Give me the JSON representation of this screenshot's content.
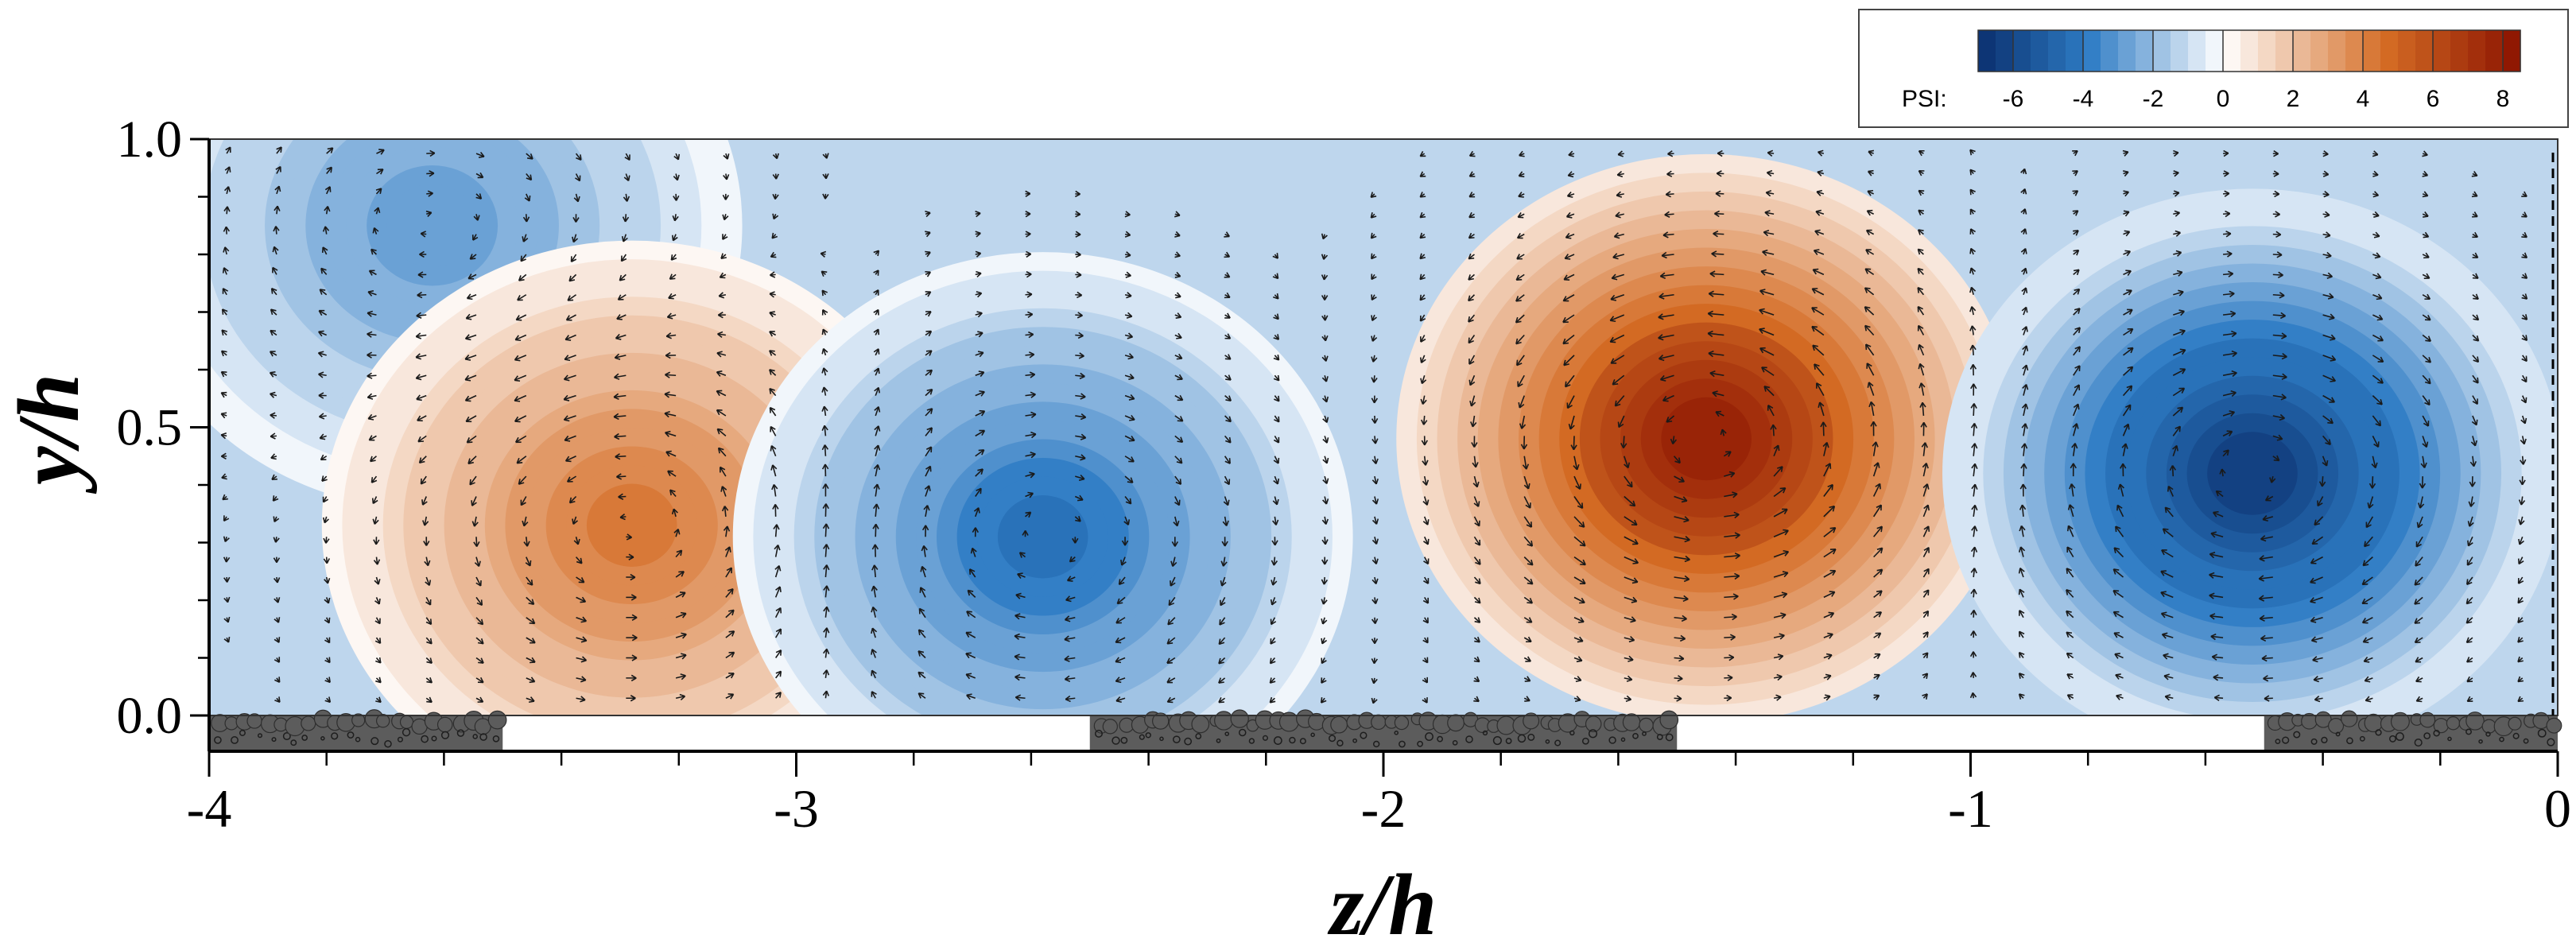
{
  "chart_data": {
    "type": "heatmap",
    "title": "",
    "xlabel": "z/h",
    "ylabel": "y/h",
    "xlim": [
      -4,
      0
    ],
    "ylim": [
      0.0,
      1.0
    ],
    "x_ticks": [
      {
        "value": -4,
        "label": "-4"
      },
      {
        "value": -3,
        "label": "-3"
      },
      {
        "value": -2,
        "label": "-2"
      },
      {
        "value": -1,
        "label": "-1"
      },
      {
        "value": 0,
        "label": "0"
      }
    ],
    "y_ticks": [
      {
        "value": 0.0,
        "label": "0.0"
      },
      {
        "value": 0.5,
        "label": "0.5"
      },
      {
        "value": 1.0,
        "label": "1.0"
      }
    ],
    "colorbar": {
      "label": "PSI:",
      "min": -7,
      "max": 8.5,
      "ticks": [
        {
          "value": -6,
          "label": "-6"
        },
        {
          "value": -4,
          "label": "-4"
        },
        {
          "value": -2,
          "label": "-2"
        },
        {
          "value": 0,
          "label": "0"
        },
        {
          "value": 2,
          "label": "2"
        },
        {
          "value": 4,
          "label": "4"
        },
        {
          "value": 6,
          "label": "6"
        },
        {
          "value": 8,
          "label": "8"
        }
      ],
      "negative_color": "#0a2f6e",
      "zero_color": "#ffffff",
      "positive_color": "#8b1200"
    },
    "vortices": [
      {
        "z": -3.62,
        "y": 0.85,
        "psi": -3.0
      },
      {
        "z": -3.28,
        "y": 0.33,
        "psi": 4.6
      },
      {
        "z": -2.58,
        "y": 0.31,
        "psi": -4.4
      },
      {
        "z": -1.45,
        "y": 0.48,
        "psi": 8.2
      },
      {
        "z": -0.52,
        "y": 0.42,
        "psi": -6.7
      }
    ],
    "roughness_patches": [
      {
        "z_start": -4.0,
        "z_end": -3.5
      },
      {
        "z_start": -2.5,
        "z_end": -1.5
      },
      {
        "z_start": -0.5,
        "z_end": 0.0
      }
    ],
    "colors": {
      "roughness": "#5c5c5c",
      "arrow": "#1a1a1a"
    }
  }
}
